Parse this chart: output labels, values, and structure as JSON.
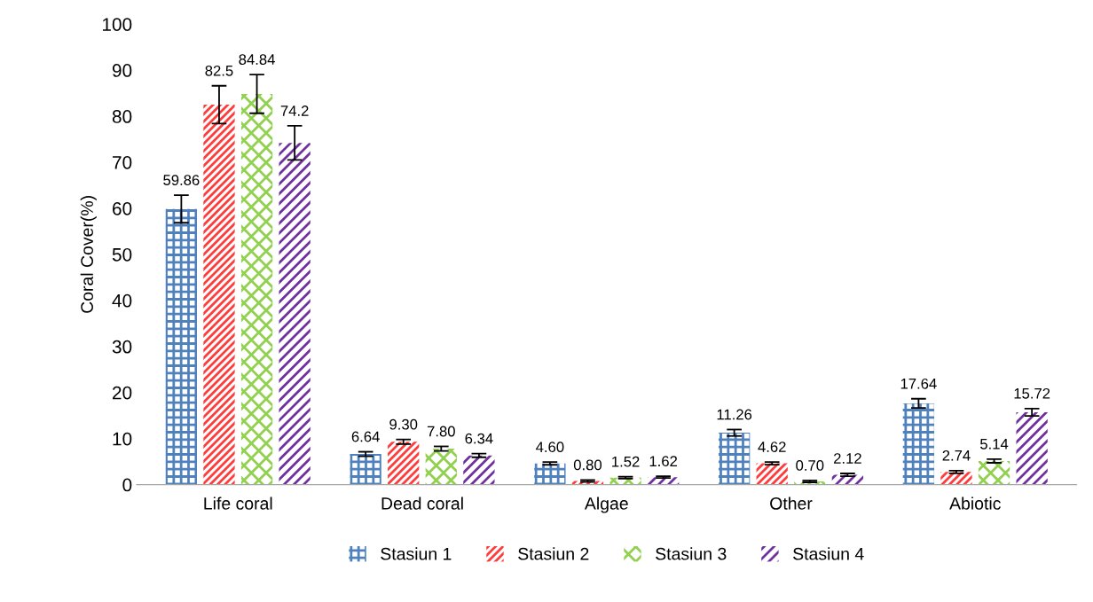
{
  "chart_data": {
    "type": "bar",
    "ylabel": "Coral Cover(%)",
    "categories": [
      "Life coral",
      "Dead coral",
      "Algae",
      "Other",
      "Abiotic"
    ],
    "series": [
      {
        "name": "Stasiun 1",
        "color": "#4f81bd",
        "values": [
          59.86,
          6.64,
          4.6,
          11.26,
          17.64
        ],
        "errors": [
          3.0,
          0.5,
          0.3,
          0.7,
          1.0
        ],
        "value_labels": [
          "59.86",
          "6.64",
          "4.60",
          "11.26",
          "17.64"
        ]
      },
      {
        "name": "Stasiun 2",
        "color": "#ff3b3b",
        "values": [
          82.5,
          9.3,
          0.8,
          4.62,
          2.74
        ],
        "errors": [
          4.1,
          0.5,
          0.2,
          0.3,
          0.3
        ],
        "value_labels": [
          "82.5",
          "9.30",
          "0.80",
          "4.62",
          "2.74"
        ]
      },
      {
        "name": "Stasiun 3",
        "color": "#92d050",
        "values": [
          84.84,
          7.8,
          1.52,
          0.7,
          5.14
        ],
        "errors": [
          4.2,
          0.5,
          0.2,
          0.2,
          0.4
        ],
        "value_labels": [
          "84.84",
          "7.80",
          "1.52",
          "0.70",
          "5.14"
        ]
      },
      {
        "name": "Stasiun 4",
        "color": "#7030a0",
        "values": [
          74.2,
          6.34,
          1.62,
          2.12,
          15.72
        ],
        "errors": [
          3.7,
          0.4,
          0.2,
          0.3,
          0.8
        ],
        "value_labels": [
          "74.2",
          "6.34",
          "1.62",
          "2.12",
          "15.72"
        ]
      }
    ],
    "ylim": [
      0,
      100
    ],
    "yticks": [
      0,
      10,
      20,
      30,
      40,
      50,
      60,
      70,
      80,
      90,
      100
    ],
    "grid": false,
    "legend": "bottom"
  }
}
